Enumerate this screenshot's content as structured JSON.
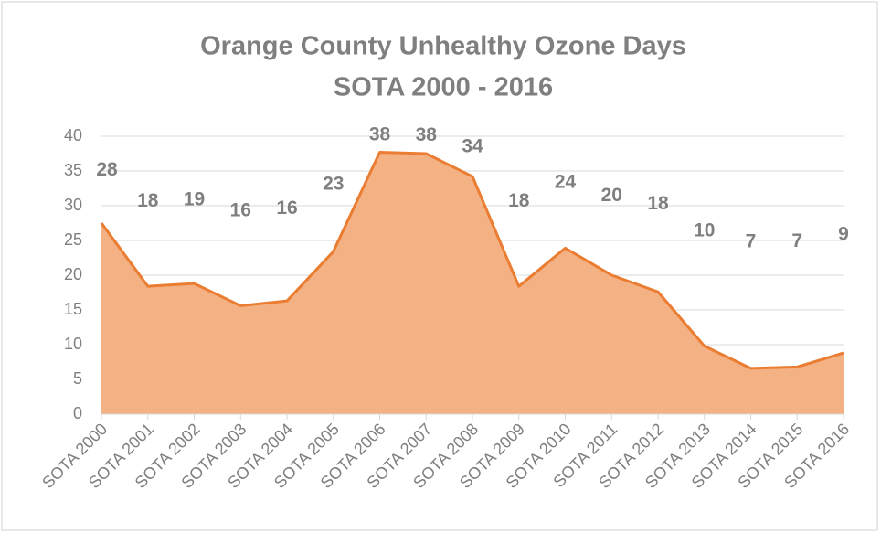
{
  "chart_data": {
    "type": "area",
    "title": "Orange County Unhealthy Ozone Days",
    "subtitle": "SOTA 2000 - 2016",
    "categories": [
      "SOTA 2000",
      "SOTA 2001",
      "SOTA 2002",
      "SOTA 2003",
      "SOTA 2004",
      "SOTA 2005",
      "SOTA 2006",
      "SOTA 2007",
      "SOTA 2008",
      "SOTA 2009",
      "SOTA 2010",
      "SOTA 2011",
      "SOTA 2012",
      "SOTA 2013",
      "SOTA 2014",
      "SOTA 2015",
      "SOTA 2016"
    ],
    "values": [
      27.5,
      18.4,
      18.8,
      15.6,
      16.3,
      23.4,
      37.7,
      37.5,
      34.2,
      18.4,
      23.9,
      20.0,
      17.6,
      9.8,
      6.6,
      6.8,
      8.8
    ],
    "value_labels": [
      "28",
      "18",
      "19",
      "16",
      "16",
      "23",
      "38",
      "38",
      "34",
      "18",
      "24",
      "20",
      "18",
      "10",
      "7",
      "7",
      "9"
    ],
    "color": "#f4b183",
    "line_color": "#ea7d32",
    "ylim": [
      0,
      40
    ],
    "yticks": [
      0,
      5,
      10,
      15,
      20,
      25,
      30,
      35,
      40
    ],
    "grid": true
  }
}
